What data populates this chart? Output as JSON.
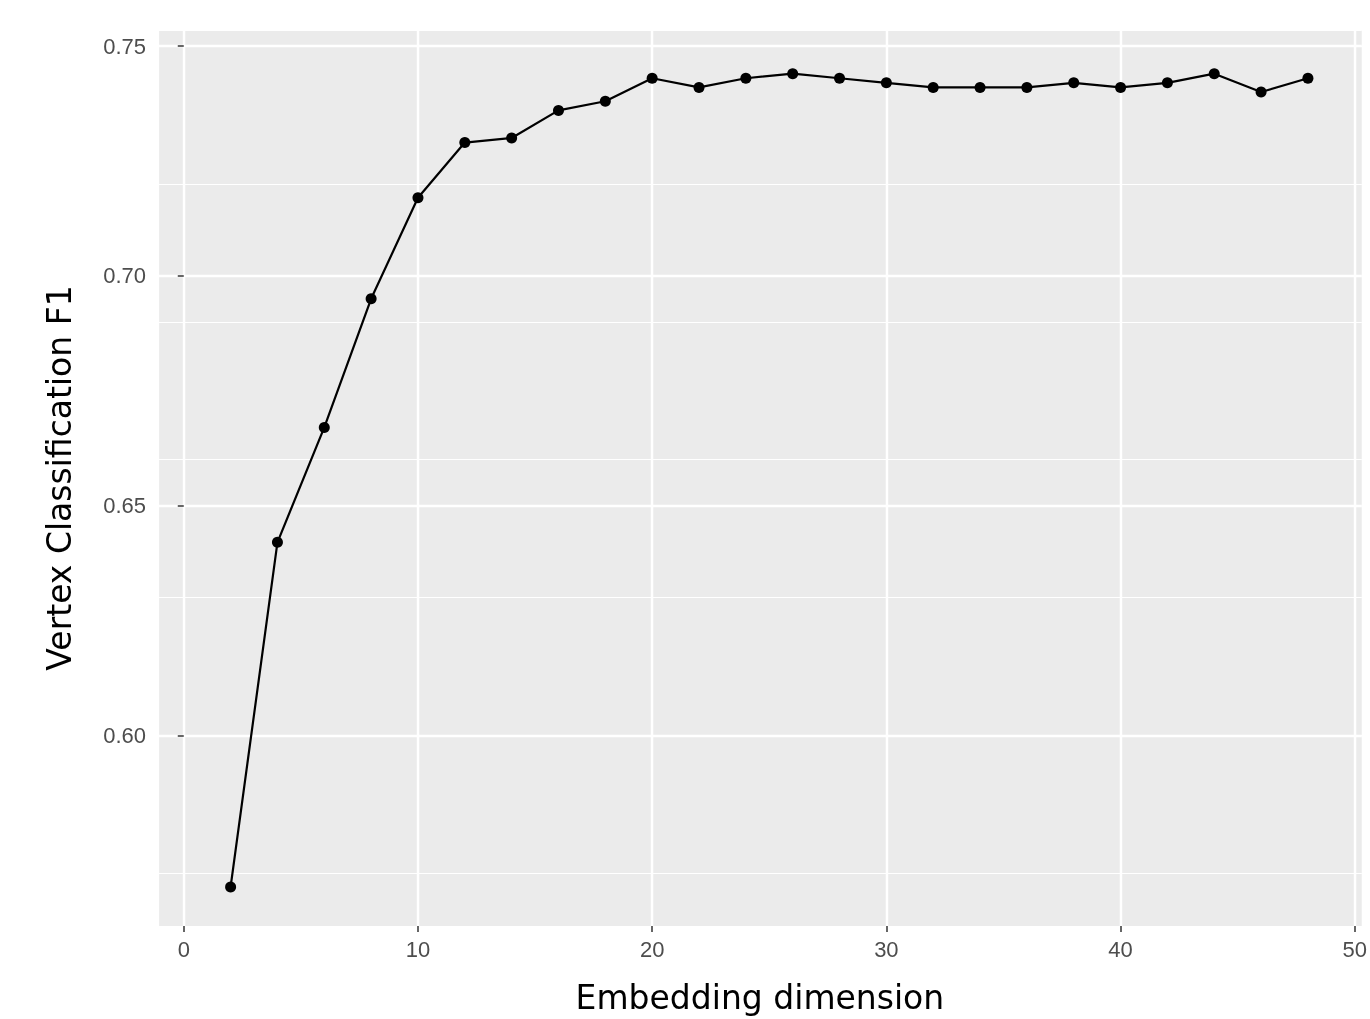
{
  "chart_data": {
    "type": "line",
    "xlabel": "Embedding dimension",
    "ylabel": "Vertex Classification F1",
    "x": [
      2,
      4,
      6,
      8,
      10,
      12,
      14,
      16,
      18,
      20,
      22,
      24,
      26,
      28,
      30,
      32,
      34,
      36,
      38,
      40,
      42,
      44,
      46,
      48
    ],
    "series": [
      {
        "color": "#000000",
        "values": [
          0.567,
          0.642,
          0.667,
          0.695,
          0.717,
          0.729,
          0.73,
          0.736,
          0.738,
          0.743,
          0.741,
          0.743,
          0.744,
          0.743,
          0.742,
          0.741,
          0.741,
          0.741,
          0.742,
          0.741,
          0.742,
          0.744,
          0.74,
          0.743
        ]
      }
    ],
    "xlim": [
      -1.1,
      50.3
    ],
    "xticks": [
      0,
      10,
      20,
      30,
      40,
      50
    ],
    "ylim": [
      0.5585,
      0.7535
    ],
    "yticks": [
      {
        "value": 0.6,
        "label": "0.60"
      },
      0.65,
      {
        "value": 0.7,
        "label": "0.70"
      },
      0.75
    ],
    "grid": true,
    "marker": "circle",
    "line_style": "solid"
  }
}
